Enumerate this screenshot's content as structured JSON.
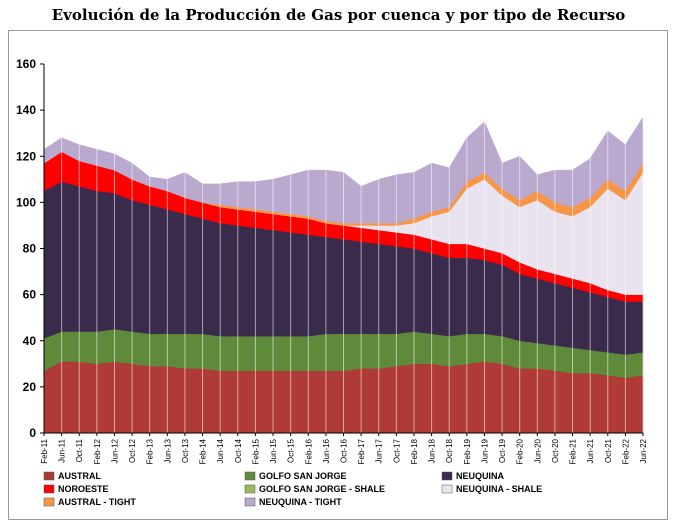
{
  "chart_data": {
    "type": "area",
    "stacked": true,
    "title": "Evolución de la Producción de Gas por cuenca y por tipo de Recurso",
    "xlabel": "",
    "ylabel": "",
    "ylim": [
      0,
      160
    ],
    "yticks": [
      "0",
      "20",
      "40",
      "60",
      "80",
      "100",
      "120",
      "140",
      "160"
    ],
    "grid": "vertical",
    "legend_position": "bottom",
    "x": [
      "Feb-11",
      "Jun-11",
      "Oct-11",
      "Feb-12",
      "Jun-12",
      "Oct-12",
      "Feb-13",
      "Jun-13",
      "Oct-13",
      "Feb-14",
      "Jun-14",
      "Oct-14",
      "Feb-15",
      "Jun-15",
      "Oct-15",
      "Feb-16",
      "Jun-16",
      "Oct-16",
      "Feb-17",
      "Jun-17",
      "Oct-17",
      "Feb-18",
      "Jun-18",
      "Oct-18",
      "Feb-19",
      "Jun-19",
      "Oct-19",
      "Feb-20",
      "Jun-20",
      "Oct-20",
      "Feb-21",
      "Jun-21",
      "Oct-21",
      "Feb-22",
      "Jun-22"
    ],
    "series": [
      {
        "name": "AUSTRAL",
        "color": "#b03a36",
        "values": [
          27,
          31,
          31,
          30,
          31,
          30,
          29,
          29,
          28,
          28,
          27,
          27,
          27,
          27,
          27,
          27,
          27,
          27,
          28,
          28,
          29,
          30,
          30,
          29,
          30,
          31,
          30,
          28,
          28,
          27,
          26,
          26,
          25,
          24,
          25
        ]
      },
      {
        "name": "GOLFO SAN JORGE",
        "color": "#5f8a3a",
        "values": [
          14,
          13,
          13,
          14,
          14,
          14,
          14,
          14,
          15,
          15,
          15,
          15,
          15,
          15,
          15,
          15,
          16,
          16,
          15,
          15,
          14,
          14,
          13,
          13,
          13,
          12,
          12,
          12,
          11,
          11,
          11,
          10,
          10,
          10,
          10
        ]
      },
      {
        "name": "GOLFO SAN JORGE - SHALE",
        "color": "#9bbb59",
        "values": [
          0,
          0,
          0,
          0,
          0,
          0,
          0,
          0,
          0,
          0,
          0,
          0,
          0,
          0,
          0,
          0,
          0,
          0,
          0,
          0,
          0,
          0,
          0,
          0,
          0,
          0,
          0,
          0,
          0,
          0,
          0,
          0,
          0,
          0,
          0
        ]
      },
      {
        "name": "NEUQUINA",
        "color": "#3a2b4d",
        "values": [
          64,
          65,
          63,
          61,
          59,
          57,
          56,
          54,
          52,
          50,
          49,
          48,
          47,
          46,
          45,
          44,
          42,
          41,
          40,
          39,
          38,
          36,
          35,
          34,
          33,
          32,
          31,
          29,
          28,
          27,
          26,
          25,
          24,
          23,
          22
        ]
      },
      {
        "name": "NOROESTE",
        "color": "#ff0000",
        "values": [
          12,
          13,
          11,
          11,
          10,
          9,
          8,
          8,
          7,
          7,
          7,
          7,
          7,
          7,
          7,
          7,
          6,
          6,
          6,
          6,
          6,
          6,
          6,
          6,
          6,
          5,
          5,
          5,
          4,
          4,
          4,
          4,
          3,
          3,
          3
        ]
      },
      {
        "name": "NEUQUINA - SHALE",
        "color": "#e8e3ee",
        "values": [
          0,
          0,
          0,
          0,
          0,
          0,
          0,
          0,
          0,
          0,
          0,
          0,
          0,
          0,
          0,
          0,
          0,
          0,
          1,
          2,
          3,
          5,
          10,
          14,
          24,
          30,
          25,
          24,
          30,
          27,
          27,
          33,
          44,
          41,
          53
        ]
      },
      {
        "name": "AUSTRAL - TIGHT",
        "color": "#f79646",
        "values": [
          0,
          0,
          0,
          0,
          0,
          0,
          0,
          0,
          0,
          0,
          1,
          1,
          1,
          1,
          1,
          1,
          1,
          1,
          1,
          1,
          1,
          2,
          2,
          2,
          3,
          3,
          3,
          3,
          4,
          4,
          4,
          4,
          4,
          4,
          4
        ]
      },
      {
        "name": "NEUQUINA - TIGHT",
        "color": "#b9a9cf",
        "values": [
          6,
          6,
          7,
          7,
          7,
          7,
          4,
          5,
          11,
          8,
          9,
          11,
          12,
          14,
          17,
          20,
          22,
          22,
          16,
          19,
          21,
          20,
          21,
          17,
          19,
          22,
          11,
          19,
          7,
          14,
          16,
          17,
          21,
          20,
          20
        ]
      }
    ],
    "legend": [
      {
        "label": "AUSTRAL",
        "color": "#b03a36"
      },
      {
        "label": "GOLFO SAN JORGE",
        "color": "#5f8a3a"
      },
      {
        "label": "NEUQUINA",
        "color": "#3a2b4d"
      },
      {
        "label": "NOROESTE",
        "color": "#ff0000"
      },
      {
        "label": "GOLFO SAN JORGE - SHALE",
        "color": "#9bbb59"
      },
      {
        "label": "NEUQUINA - SHALE",
        "color": "#e8e3ee"
      },
      {
        "label": "AUSTRAL  - TIGHT",
        "color": "#f79646"
      },
      {
        "label": "NEUQUINA - TIGHT",
        "color": "#b9a9cf"
      }
    ]
  }
}
